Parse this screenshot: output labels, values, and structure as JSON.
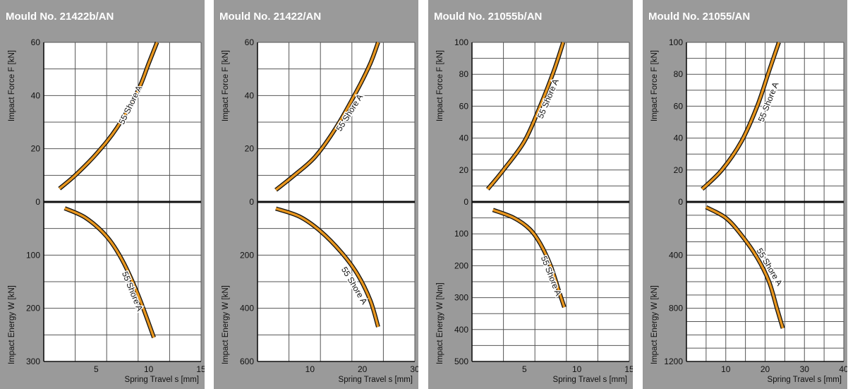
{
  "panels": [
    {
      "title": "Mould No. 21422b/AN",
      "chart_data": {
        "type": "line",
        "xlabel": "Spring Travel s  [mm]",
        "xlim": [
          0,
          15
        ],
        "xticks": [
          5,
          10,
          15
        ],
        "xgrid": 3,
        "force": {
          "ylabel": "Impact Force F  [kN]",
          "ylim": [
            0,
            60
          ],
          "yticks": [
            0,
            20,
            40,
            60
          ],
          "ygrid": 10,
          "series": [
            {
              "name": "55 Shore A",
              "x": [
                1.5,
                3,
                5,
                7,
                9,
                10,
                10.8
              ],
              "y": [
                5,
                10,
                18,
                28,
                42,
                52,
                60
              ]
            }
          ],
          "label": {
            "text": "55 Shore A",
            "x": 8.5,
            "y": 36
          }
        },
        "energy": {
          "ylabel": "Impact Energy W  [kN]",
          "ylim": [
            0,
            300
          ],
          "yticks": [
            100,
            200,
            300
          ],
          "ygrid": 50,
          "series": [
            {
              "name": "55 Shore A",
              "x": [
                2,
                4,
                6,
                7.5,
                9,
                10.5
              ],
              "y": [
                12,
                30,
                65,
                110,
                175,
                255
              ]
            }
          ],
          "label": {
            "text": "55 Shore A",
            "x": 8.2,
            "y": 170
          }
        }
      }
    },
    {
      "title": "Mould No. 21422/AN",
      "chart_data": {
        "type": "line",
        "xlabel": "Spring Travel s  [mm]",
        "xlim": [
          0,
          30
        ],
        "xticks": [
          10,
          20,
          30
        ],
        "xgrid": 6,
        "force": {
          "ylabel": "Impact Force F  [kN]",
          "ylim": [
            0,
            60
          ],
          "yticks": [
            0,
            20,
            40,
            60
          ],
          "ygrid": 10,
          "series": [
            {
              "name": "55 Shore A",
              "x": [
                3.5,
                7,
                11,
                15,
                19,
                21.5,
                23
              ],
              "y": [
                4.5,
                10,
                17,
                28,
                42,
                52,
                60
              ]
            }
          ],
          "label": {
            "text": "55 Shore A",
            "x": 18,
            "y": 33
          }
        },
        "energy": {
          "ylabel": "Impact Energy W  [kN]",
          "ylim": [
            0,
            600
          ],
          "yticks": [
            200,
            400,
            600
          ],
          "ygrid": 100,
          "series": [
            {
              "name": "55 Shore A",
              "x": [
                3.5,
                8,
                12,
                16,
                19,
                21.5,
                23
              ],
              "y": [
                25,
                55,
                110,
                190,
                270,
                370,
                470
              ]
            }
          ],
          "label": {
            "text": "55 Shore A",
            "x": 18,
            "y": 320
          }
        }
      }
    },
    {
      "title": "Mould No. 21055b/AN",
      "chart_data": {
        "type": "line",
        "xlabel": "Spring Travel s  [mm]",
        "xlim": [
          0,
          15
        ],
        "xticks": [
          5,
          10,
          15
        ],
        "xgrid": 3,
        "force": {
          "ylabel": "Impact Force F  [kN]",
          "ylim": [
            0,
            100
          ],
          "yticks": [
            0,
            20,
            40,
            60,
            80,
            100
          ],
          "ygrid": 10,
          "series": [
            {
              "name": "55 Shore A",
              "x": [
                1.5,
                3,
                5,
                6.5,
                7.8,
                8.7
              ],
              "y": [
                8,
                20,
                38,
                60,
                82,
                100
              ]
            }
          ],
          "label": {
            "text": "55 Shore A",
            "x": 7.5,
            "y": 64
          }
        },
        "energy": {
          "ylabel": "Impact Energy W  [Nm]",
          "ylim": [
            0,
            500
          ],
          "yticks": [
            100,
            200,
            300,
            400,
            500
          ],
          "ygrid": 50,
          "series": [
            {
              "name": "55 Shore A",
              "x": [
                2,
                4,
                5.5,
                6.5,
                7.5,
                8.3,
                8.8
              ],
              "y": [
                25,
                50,
                85,
                130,
                200,
                280,
                330
              ]
            }
          ],
          "label": {
            "text": "55 Shore A",
            "x": 7.3,
            "y": 235
          }
        }
      }
    },
    {
      "title": "Mould No. 21055/AN",
      "chart_data": {
        "type": "line",
        "xlabel": "Spring Travel s  [mm]",
        "xlim": [
          0,
          40
        ],
        "xticks": [
          10,
          20,
          30,
          40
        ],
        "xgrid": 5,
        "force": {
          "ylabel": "Impact Force F  [kN]",
          "ylim": [
            0,
            100
          ],
          "yticks": [
            0,
            20,
            40,
            60,
            80,
            100
          ],
          "ygrid": 10,
          "series": [
            {
              "name": "55 Shore A",
              "x": [
                4,
                9,
                14,
                18,
                21,
                23.5
              ],
              "y": [
                8,
                20,
                38,
                60,
                82,
                100
              ]
            }
          ],
          "label": {
            "text": "55 Shore A",
            "x": 21.5,
            "y": 62
          }
        },
        "energy": {
          "ylabel": "Impact Energy W  [kN]",
          "ylim": [
            0,
            1200
          ],
          "yticks": [
            400,
            800,
            1200
          ],
          "ygrid": 100,
          "series": [
            {
              "name": "55 Shore A",
              "x": [
                5,
                10,
                14,
                18,
                21,
                23,
                24.5
              ],
              "y": [
                40,
                120,
                250,
                420,
                600,
                800,
                950
              ]
            }
          ],
          "label": {
            "text": "55 Shore A",
            "x": 20.5,
            "y": 500
          }
        }
      }
    }
  ]
}
